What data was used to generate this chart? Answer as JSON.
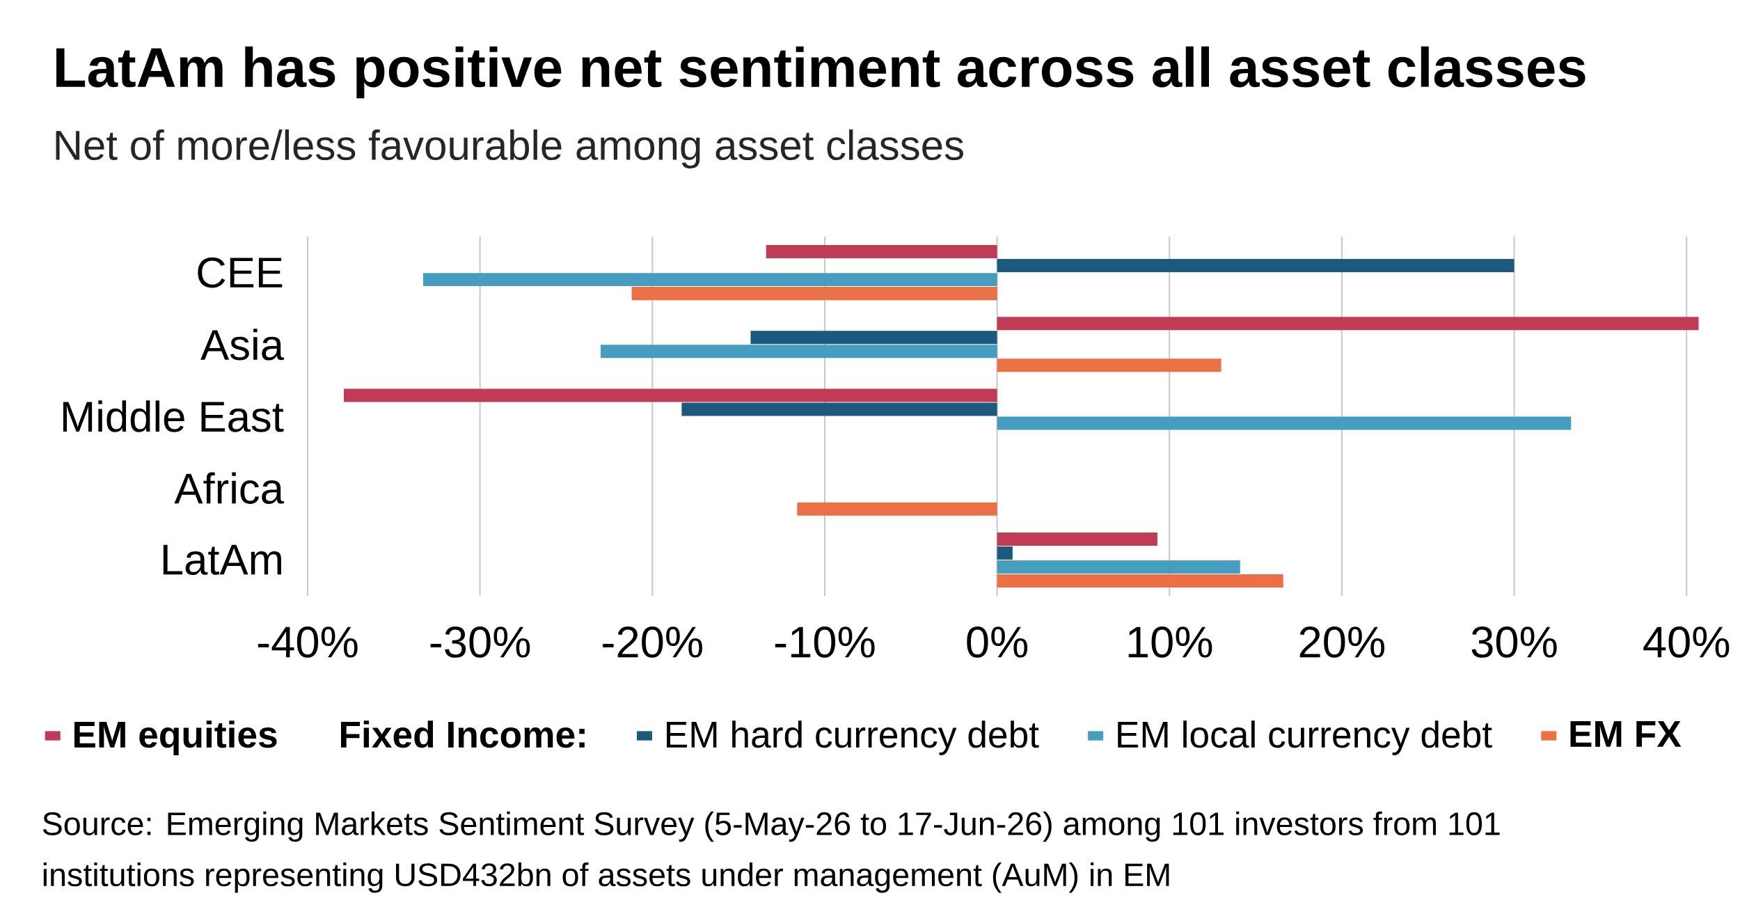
{
  "chart_data": {
    "type": "bar",
    "orientation": "horizontal",
    "title": "LatAm has positive net sentiment across all asset classes",
    "subtitle": "Net of more/less favourable among asset classes",
    "categories": [
      "CEE",
      "Asia",
      "Middle East",
      "Africa",
      "LatAm"
    ],
    "series": [
      {
        "name": "EM equities",
        "color": "#c13a56",
        "values": [
          -13.4,
          40.7,
          -37.9,
          null,
          9.3
        ]
      },
      {
        "name": "EM hard currency debt",
        "color": "#1b5a7d",
        "values": [
          30.0,
          -14.3,
          -18.3,
          null,
          0.9
        ]
      },
      {
        "name": "EM local currency debt",
        "color": "#469dc0",
        "values": [
          -33.3,
          -23.0,
          33.3,
          null,
          14.1
        ]
      },
      {
        "name": "EM FX",
        "color": "#ec7046",
        "values": [
          -21.2,
          13.0,
          null,
          -11.6,
          16.6
        ]
      }
    ],
    "legend_title": "Fixed Income:",
    "xlim": [
      -40,
      41
    ],
    "xticks": [
      {
        "value": -40,
        "label": "-40%"
      },
      {
        "value": -30,
        "label": "-30%"
      },
      {
        "value": -20,
        "label": "-20%"
      },
      {
        "value": -10,
        "label": "-10%"
      },
      {
        "value": 0,
        "label": "0%"
      },
      {
        "value": 10,
        "label": "10%"
      },
      {
        "value": 20,
        "label": "20%"
      },
      {
        "value": 30,
        "label": "30%"
      },
      {
        "value": 40,
        "label": "40%"
      }
    ],
    "grid": "x",
    "legend": "bottom",
    "annotations": [
      "Source: Emerging Markets Sentiment Survey (5-May-26 to 17-Jun-26) among 101 investors from 101 institutions representing USD432bn of assets under management (AuM) in EM"
    ]
  }
}
